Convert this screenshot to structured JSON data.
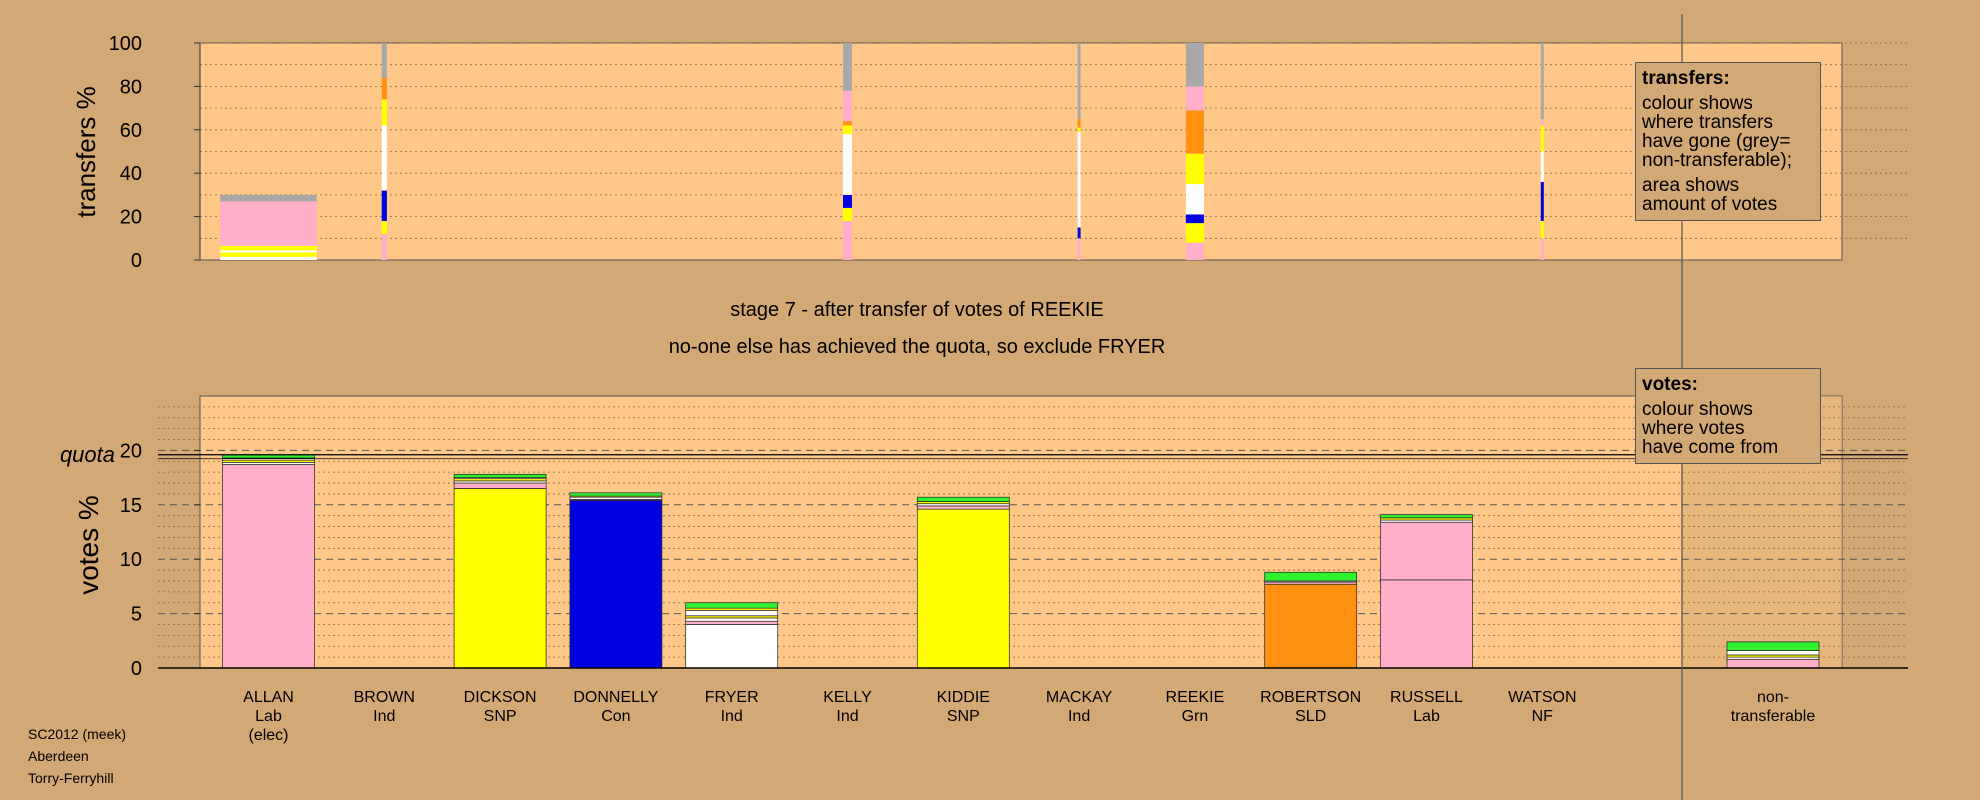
{
  "meta": {
    "footer": [
      "SC2012 (meek)",
      "Aberdeen",
      "Torry-Ferryhill"
    ],
    "stage_title": "stage 7 - after transfer of votes of REEKIE",
    "stage_subtitle": "no-one else has achieved the quota, so exclude FRYER"
  },
  "legend_transfers": {
    "heading": "transfers:",
    "lines": [
      "colour shows",
      "where transfers",
      "have gone (grey=",
      "non-transferable);"
    ],
    "lines2": [
      "area shows",
      "amount of votes"
    ]
  },
  "legend_votes": {
    "heading": "votes:",
    "lines": [
      "colour shows",
      "where votes",
      "have come from"
    ]
  },
  "colors": {
    "background": "#D2A874",
    "plot_area": "#FFC888",
    "Lab": "#FFB0C8",
    "SNP": "#FFFF00",
    "Con": "#0000E0",
    "Ind": "#FFFFFF",
    "SLD": "#FF9010",
    "Grn": "#30F030",
    "NF": "#FFFFFF",
    "nontransferable": "#A8A8A8"
  },
  "chart_data": [
    {
      "type": "bar",
      "name": "transfers",
      "ylabel": "transfers %",
      "ylim": [
        0,
        100
      ],
      "yticks": [
        0,
        20,
        40,
        60,
        80,
        100
      ],
      "note": "stacked bars show where transfers from each candidate have gone",
      "bars": [
        {
          "candidate": "ALLAN",
          "width_fraction": 0.75,
          "total": 30,
          "segments": [
            [
              "Ind",
              1.5
            ],
            [
              "SNP",
              2
            ],
            [
              "Ind",
              1
            ],
            [
              "SNP",
              2
            ],
            [
              "Lab",
              20
            ],
            [
              "Lab",
              0.5
            ],
            [
              "nontransferable",
              3
            ]
          ]
        },
        {
          "candidate": "BROWN",
          "width_fraction": 0.04,
          "total": 100,
          "segments": [
            [
              "Lab",
              12
            ],
            [
              "SNP",
              6
            ],
            [
              "Con",
              14
            ],
            [
              "Ind",
              30
            ],
            [
              "SNP",
              12
            ],
            [
              "SLD",
              10
            ],
            [
              "nontransferable",
              16
            ]
          ]
        },
        {
          "candidate": "KELLY",
          "width_fraction": 0.07,
          "total": 100,
          "segments": [
            [
              "Lab",
              18
            ],
            [
              "SNP",
              6
            ],
            [
              "Con",
              6
            ],
            [
              "Ind",
              28
            ],
            [
              "SNP",
              4
            ],
            [
              "SLD",
              2
            ],
            [
              "Lab",
              14
            ],
            [
              "nontransferable",
              22
            ]
          ]
        },
        {
          "candidate": "MACKAY",
          "width_fraction": 0.02,
          "total": 100,
          "segments": [
            [
              "Lab",
              10
            ],
            [
              "Con",
              5
            ],
            [
              "Ind",
              44
            ],
            [
              "SNP",
              2
            ],
            [
              "SLD",
              4
            ],
            [
              "nontransferable",
              35
            ]
          ]
        },
        {
          "candidate": "REEKIE",
          "width_fraction": 0.14,
          "total": 100,
          "segments": [
            [
              "Lab",
              8
            ],
            [
              "SNP",
              9
            ],
            [
              "Con",
              4
            ],
            [
              "Ind",
              14
            ],
            [
              "SNP",
              14
            ],
            [
              "SLD",
              20
            ],
            [
              "Lab",
              11
            ],
            [
              "nontransferable",
              20
            ]
          ]
        },
        {
          "candidate": "WATSON",
          "width_fraction": 0.02,
          "total": 100,
          "segments": [
            [
              "Lab",
              10
            ],
            [
              "SNP",
              8
            ],
            [
              "Con",
              18
            ],
            [
              "Ind",
              14
            ],
            [
              "SNP",
              12
            ],
            [
              "Lab",
              3
            ],
            [
              "nontransferable",
              35
            ]
          ]
        }
      ]
    },
    {
      "type": "bar",
      "name": "votes",
      "ylabel": "votes %",
      "ylim": [
        0,
        25
      ],
      "yticks": [
        0,
        5,
        10,
        15,
        20
      ],
      "quota": 19.6,
      "quota_label": "quota",
      "categories": [
        {
          "name": "ALLAN",
          "party": "Lab",
          "extra": "(elec)"
        },
        {
          "name": "BROWN",
          "party": "Ind",
          "extra": ""
        },
        {
          "name": "DICKSON",
          "party": "SNP",
          "extra": ""
        },
        {
          "name": "DONNELLY",
          "party": "Con",
          "extra": ""
        },
        {
          "name": "FRYER",
          "party": "Ind",
          "extra": ""
        },
        {
          "name": "KELLY",
          "party": "Ind",
          "extra": ""
        },
        {
          "name": "KIDDIE",
          "party": "SNP",
          "extra": ""
        },
        {
          "name": "MACKAY",
          "party": "Ind",
          "extra": ""
        },
        {
          "name": "REEKIE",
          "party": "Grn",
          "extra": ""
        },
        {
          "name": "ROBERTSON",
          "party": "SLD",
          "extra": ""
        },
        {
          "name": "RUSSELL",
          "party": "Lab",
          "extra": ""
        },
        {
          "name": "WATSON",
          "party": "NF",
          "extra": ""
        }
      ],
      "nontransferable_label": [
        "non-",
        "transferable"
      ],
      "stacks": [
        [
          [
            "Lab",
            18.7
          ],
          [
            "Ind",
            0.2
          ],
          [
            "SNP",
            0.2
          ],
          [
            "Ind",
            0.2
          ],
          [
            "Grn",
            0.3
          ]
        ],
        [],
        [
          [
            "SNP",
            16.5
          ],
          [
            "Lab",
            0.5
          ],
          [
            "Ind",
            0.2
          ],
          [
            "SNP",
            0.2
          ],
          [
            "Ind",
            0.1
          ],
          [
            "Grn",
            0.3
          ]
        ],
        [
          [
            "Con",
            15.4
          ],
          [
            "Lab",
            0.1
          ],
          [
            "Ind",
            0.2
          ],
          [
            "SNP",
            0.1
          ],
          [
            "Grn",
            0.3
          ]
        ],
        [
          [
            "Ind",
            4.0
          ],
          [
            "Lab",
            0.3
          ],
          [
            "Ind",
            0.3
          ],
          [
            "SNP",
            0.2
          ],
          [
            "Ind",
            0.5
          ],
          [
            "SNP",
            0.2
          ],
          [
            "Grn",
            0.5
          ]
        ],
        [],
        [
          [
            "SNP",
            14.6
          ],
          [
            "Lab",
            0.3
          ],
          [
            "Ind",
            0.2
          ],
          [
            "SNP",
            0.2
          ],
          [
            "Grn",
            0.4
          ]
        ],
        [],
        [],
        [
          [
            "SLD",
            7.7
          ],
          [
            "Lab",
            0.2
          ],
          [
            "Ind",
            0.1
          ],
          [
            "Grn",
            0.8
          ]
        ],
        [
          [
            "Lab",
            8.1
          ],
          [
            "Lab",
            5.3
          ],
          [
            "Ind",
            0.2
          ],
          [
            "SNP",
            0.2
          ],
          [
            "Grn",
            0.3
          ]
        ],
        []
      ],
      "nontransferable_stack": [
        [
          "Lab",
          0.8
        ],
        [
          "Ind",
          0.2
        ],
        [
          "SNP",
          0.2
        ],
        [
          "Ind",
          0.4
        ],
        [
          "Grn",
          0.8
        ]
      ]
    }
  ]
}
